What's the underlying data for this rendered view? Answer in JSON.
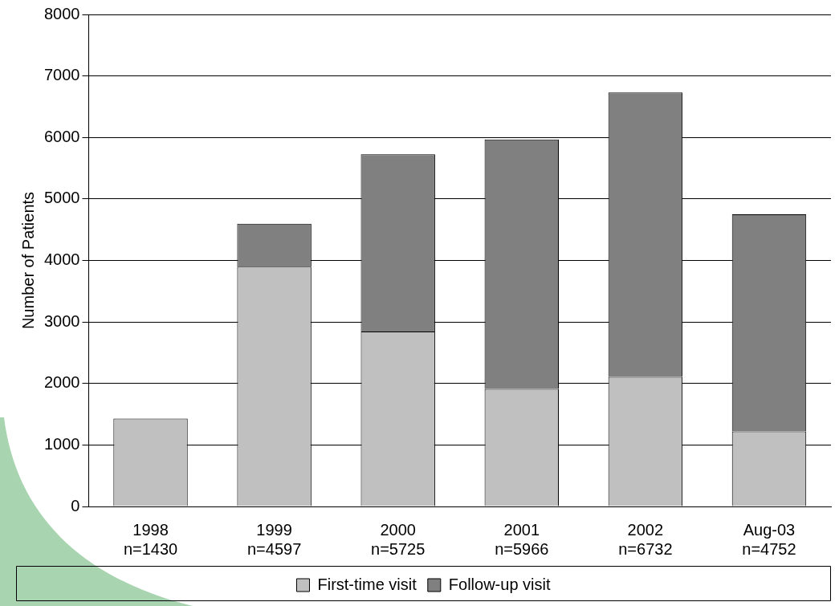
{
  "chart_data": {
    "type": "bar",
    "ylabel": "Number of Patients",
    "stacked": true,
    "categories": [
      "1998\nn=1430",
      "1999\nn=4597",
      "2000\nn=5725",
      "2001\nn=5966",
      "2002\nn=6732",
      "Aug-03\nn=4752"
    ],
    "series": [
      {
        "name": "First-time visit",
        "color": "#c0c0c0",
        "values": [
          1430,
          3900,
          2846,
          1913,
          2108,
          1220
        ]
      },
      {
        "name": "Follow-up visit",
        "color": "#808080",
        "values": [
          null,
          697,
          2879,
          4053,
          4624,
          3532
        ]
      }
    ],
    "ylim": [
      0,
      8000
    ],
    "yticks": [
      0,
      1000,
      2000,
      3000,
      4000,
      5000,
      6000,
      7000,
      8000
    ],
    "grid": "y",
    "legend": "bottom"
  }
}
